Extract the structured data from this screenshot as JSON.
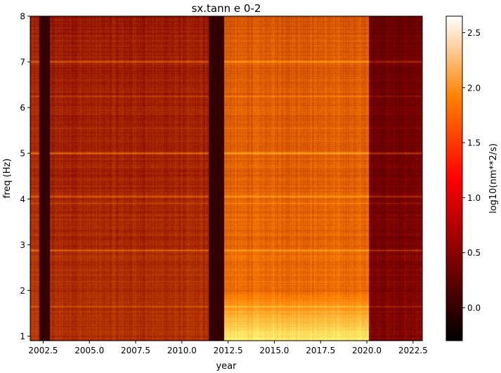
{
  "chart_data": {
    "type": "heatmap",
    "title": "sx.tann e 0-2",
    "xlabel": "year",
    "ylabel": "freq (Hz)",
    "colorbar_label": "log10(nm**2/s)",
    "colormap": "afmhot",
    "xlim": [
      2001.8,
      2023.0
    ],
    "ylim": [
      0.9,
      8.0
    ],
    "clim": [
      -0.3,
      2.65
    ],
    "x_ticks": [
      2002.5,
      2005.0,
      2007.5,
      2010.0,
      2012.5,
      2015.0,
      2017.5,
      2020.0,
      2022.5
    ],
    "x_tick_labels": [
      "2002.5",
      "2005.0",
      "2007.5",
      "2010.0",
      "2012.5",
      "2015.0",
      "2017.5",
      "2020.0",
      "2022.5"
    ],
    "y_ticks": [
      1,
      2,
      3,
      4,
      5,
      6,
      7,
      8
    ],
    "y_tick_labels": [
      "1",
      "2",
      "3",
      "4",
      "5",
      "6",
      "7",
      "8"
    ],
    "colorbar_ticks": [
      0.0,
      0.5,
      1.0,
      1.5,
      2.0,
      2.5
    ],
    "colorbar_tick_labels": [
      "0.0",
      "0.5",
      "1.0",
      "1.5",
      "2.0",
      "2.5"
    ],
    "periods": [
      {
        "start": 2001.8,
        "end": 2002.3,
        "level": 0.75
      },
      {
        "start": 2002.3,
        "end": 2002.85,
        "level": 0.0
      },
      {
        "start": 2002.85,
        "end": 2011.45,
        "level": 0.72
      },
      {
        "start": 2011.45,
        "end": 2012.3,
        "level": 0.0
      },
      {
        "start": 2012.3,
        "end": 2020.1,
        "level": 1.08
      },
      {
        "start": 2020.1,
        "end": 2023.0,
        "level": 0.45
      }
    ],
    "low_freq_enhancement": [
      {
        "start": 2012.3,
        "end": 2020.1,
        "freq_max": 2.0,
        "extra": 0.75
      }
    ],
    "spectral_lines": [
      {
        "freq": 7.0,
        "strength": 0.45
      },
      {
        "freq": 5.0,
        "strength": 0.45
      },
      {
        "freq": 4.05,
        "strength": 0.4
      },
      {
        "freq": 2.87,
        "strength": 0.4
      },
      {
        "freq": 6.25,
        "strength": 0.25
      },
      {
        "freq": 1.65,
        "strength": 0.25
      },
      {
        "freq": 3.9,
        "strength": 0.15
      },
      {
        "freq": 5.55,
        "strength": 0.15
      }
    ]
  }
}
